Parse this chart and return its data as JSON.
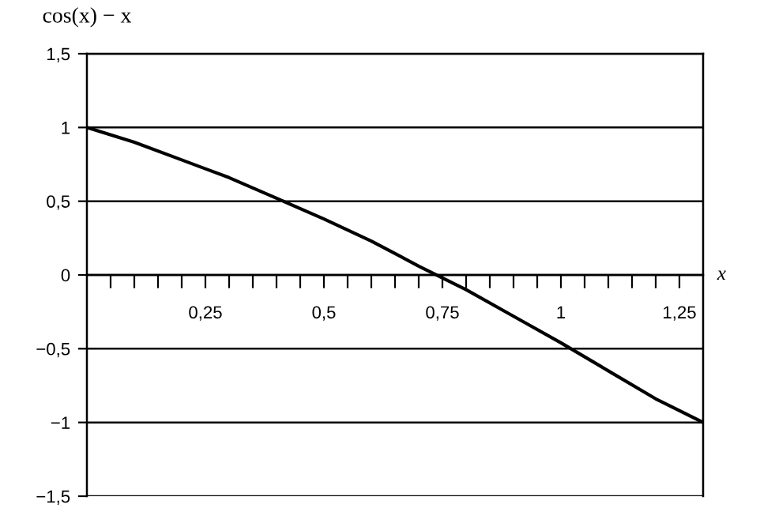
{
  "chart_data": {
    "type": "line",
    "ylabel": "cos(x) − x",
    "xlabel": "x",
    "x": [
      0,
      0.1,
      0.2,
      0.3,
      0.4,
      0.5,
      0.6,
      0.7,
      0.8,
      0.9,
      1.0,
      1.1,
      1.2,
      1.3
    ],
    "series": [
      {
        "color": "#000000",
        "values": [
          1.0,
          0.9,
          0.78,
          0.66,
          0.52,
          0.38,
          0.23,
          0.06,
          -0.1,
          -0.28,
          -0.46,
          -0.65,
          -0.84,
          -1.0
        ]
      }
    ],
    "xlim": [
      0,
      1.3
    ],
    "xticks": [
      {
        "value": 0.05,
        "label": null
      },
      {
        "value": 0.1,
        "label": null
      },
      {
        "value": 0.15,
        "label": null
      },
      {
        "value": 0.2,
        "label": null
      },
      {
        "value": 0.25,
        "label": "0,25"
      },
      {
        "value": 0.3,
        "label": null
      },
      {
        "value": 0.35,
        "label": null
      },
      {
        "value": 0.4,
        "label": null
      },
      {
        "value": 0.45,
        "label": null
      },
      {
        "value": 0.5,
        "label": "0,5"
      },
      {
        "value": 0.55,
        "label": null
      },
      {
        "value": 0.6,
        "label": null
      },
      {
        "value": 0.65,
        "label": null
      },
      {
        "value": 0.7,
        "label": null
      },
      {
        "value": 0.75,
        "label": "0,75"
      },
      {
        "value": 0.8,
        "label": null
      },
      {
        "value": 0.85,
        "label": null
      },
      {
        "value": 0.9,
        "label": null
      },
      {
        "value": 0.95,
        "label": null
      },
      {
        "value": 1,
        "label": "1"
      },
      {
        "value": 1.05,
        "label": null
      },
      {
        "value": 1.1,
        "label": null
      },
      {
        "value": 1.15,
        "label": null
      },
      {
        "value": 1.2,
        "label": null
      },
      {
        "value": 1.25,
        "label": "1,25"
      }
    ],
    "ylim": [
      -1.5,
      1.5
    ],
    "yticks": [
      {
        "value": -1.5,
        "label": "−1,5"
      },
      {
        "value": -1,
        "label": "−1"
      },
      {
        "value": -0.5,
        "label": "−0,5"
      },
      {
        "value": 0,
        "label": "0"
      },
      {
        "value": 0.5,
        "label": "0,5"
      },
      {
        "value": 1,
        "label": "1"
      },
      {
        "value": 1.5,
        "label": "1,5"
      }
    ],
    "grid": "y",
    "line_style": "solid",
    "marker": "none"
  }
}
